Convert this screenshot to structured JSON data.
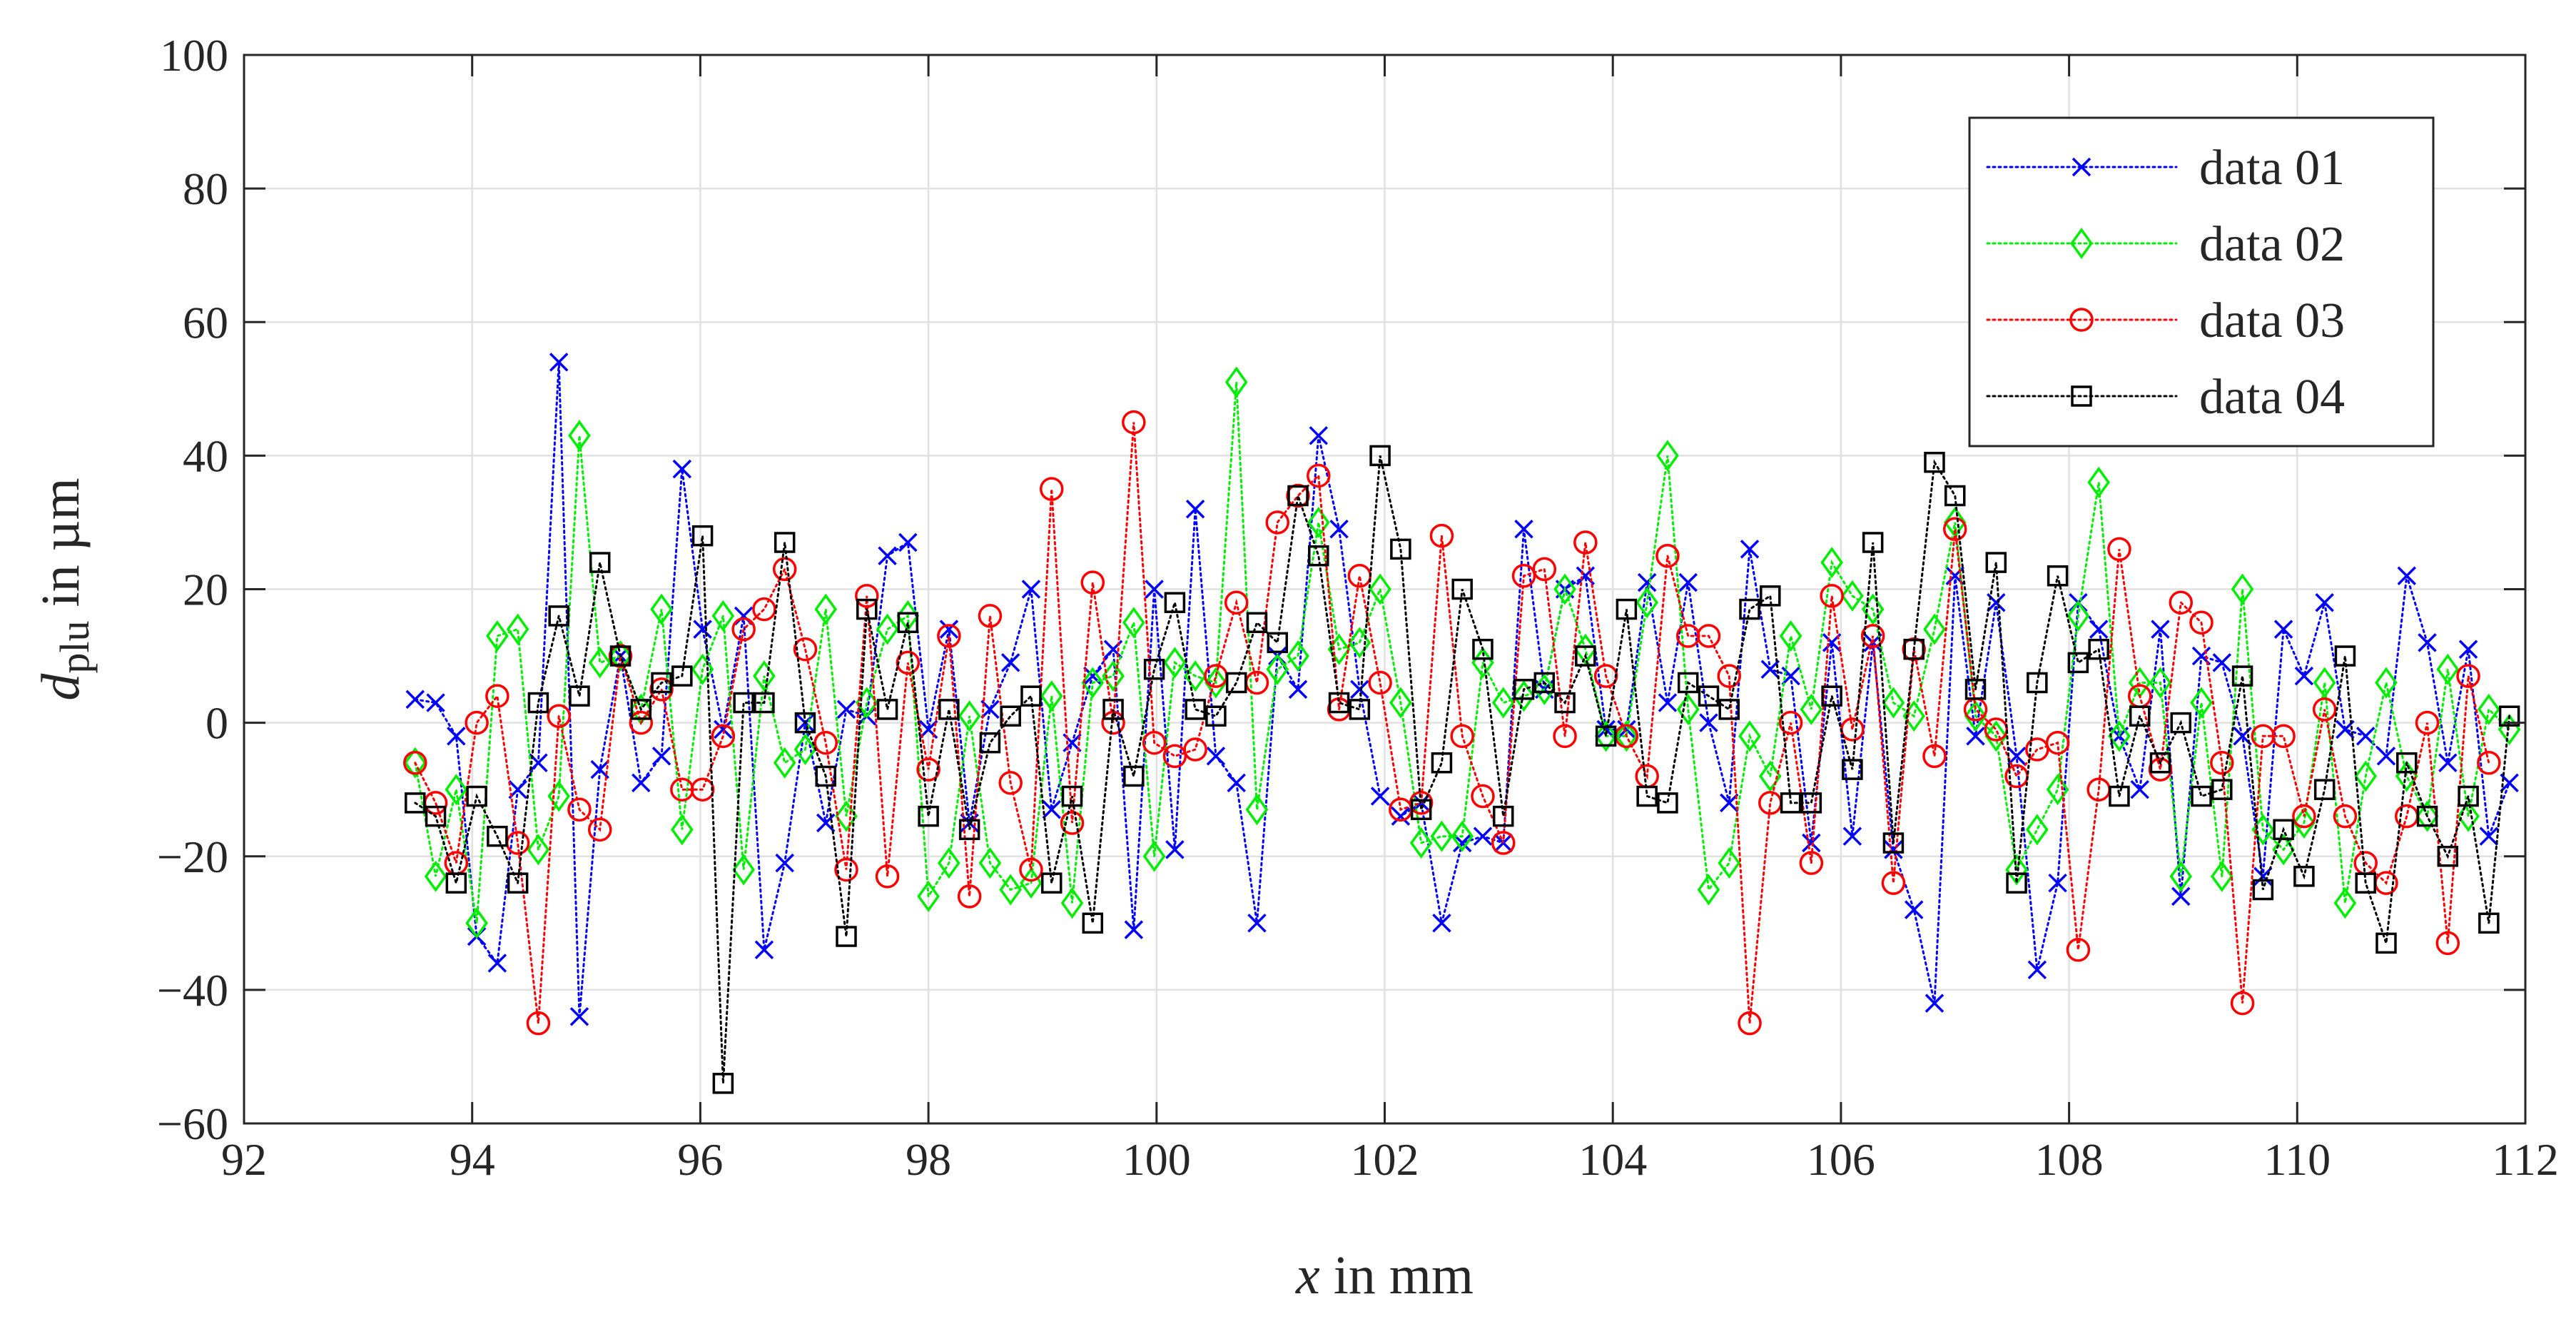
{
  "chart_data": {
    "type": "line",
    "title": "",
    "xlabel": {
      "var": "x",
      "unit": " in mm"
    },
    "ylabel": {
      "var": "d",
      "sub": "plu",
      "unit": " in µm"
    },
    "xlim": [
      92,
      112
    ],
    "ylim": [
      -60,
      100
    ],
    "xticks": [
      92,
      94,
      96,
      98,
      100,
      102,
      104,
      106,
      108,
      110,
      112
    ],
    "yticks": [
      -60,
      -40,
      -20,
      0,
      20,
      40,
      60,
      80,
      100
    ],
    "xtick_labels": [
      "92",
      "94",
      "96",
      "98",
      "100",
      "102",
      "104",
      "106",
      "108",
      "110",
      "112"
    ],
    "ytick_labels": [
      "−60",
      "−40",
      "−20",
      "0",
      "20",
      "40",
      "60",
      "80",
      "100"
    ],
    "grid": true,
    "legend_position": "top-right",
    "x_start": 93.5,
    "x_step": 0.18,
    "series": [
      {
        "name": "data 01",
        "color": "#0000ff",
        "marker": "x",
        "values": [
          3.5,
          3,
          -2,
          -32,
          -36,
          -10,
          -6,
          54,
          -44,
          -7,
          10,
          -9,
          -5,
          38,
          14,
          -1,
          16,
          -34,
          -21,
          0,
          -15,
          2,
          1,
          25,
          27,
          -1,
          14,
          -15,
          2,
          9,
          20,
          -13,
          -3,
          7,
          11,
          -31,
          20,
          -19,
          32,
          -5,
          -9,
          -30,
          10,
          5,
          43,
          29,
          5,
          -11,
          -14,
          -12,
          -30,
          -18,
          -17,
          -18,
          29,
          5,
          20,
          22,
          -1,
          -1,
          21,
          3,
          21,
          0,
          -12,
          26,
          8,
          7,
          -18,
          12,
          -17,
          12,
          -19,
          -28,
          -42,
          22,
          -2,
          18,
          -5,
          -37,
          -24,
          18,
          14,
          -2,
          -10,
          14,
          -26,
          10,
          9,
          -2,
          -23,
          14,
          7,
          18,
          -1,
          -2,
          -5,
          22,
          12,
          -6,
          11,
          -17,
          -9
        ]
      },
      {
        "name": "data 02",
        "color": "#00ee00",
        "marker": "diamond",
        "values": [
          -6,
          -23,
          -10,
          -30,
          13,
          14,
          -19,
          -11,
          43,
          9,
          10,
          2,
          17,
          -16,
          8,
          16,
          -22,
          7,
          -6,
          -4,
          17,
          -14,
          3,
          14,
          16,
          -26,
          -21,
          1,
          -21,
          -25,
          -24,
          4,
          -27,
          6,
          7,
          15,
          -20,
          9,
          7,
          6,
          51,
          -13,
          8,
          10,
          30,
          11,
          12,
          20,
          3,
          -18,
          -17,
          -17,
          9,
          3,
          4,
          5,
          20,
          11,
          -2,
          -2,
          18,
          40,
          2,
          -25,
          -21,
          -2,
          -8,
          13,
          2,
          24,
          19,
          17,
          3,
          1,
          14,
          30,
          1,
          -2,
          -22,
          -16,
          -10,
          16,
          36,
          -2,
          6,
          6,
          -23,
          3,
          -23,
          20,
          -16,
          -19,
          -15,
          6,
          -27,
          -8,
          6,
          -8,
          -14,
          8,
          -14,
          2,
          -1
        ]
      },
      {
        "name": "data 03",
        "color": "#ff0000",
        "marker": "circle",
        "values": [
          -6,
          -12,
          -21,
          0,
          4,
          -18,
          -45,
          1,
          -13,
          -16,
          10,
          0,
          5,
          -10,
          -10,
          -2,
          14,
          17,
          23,
          11,
          -3,
          -22,
          19,
          -23,
          9,
          -7,
          13,
          -26,
          16,
          -9,
          -22,
          35,
          -15,
          21,
          0,
          45,
          -3,
          -5,
          -4,
          7,
          18,
          6,
          30,
          34,
          37,
          2,
          22,
          6,
          -13,
          -12,
          28,
          -2,
          -11,
          -18,
          22,
          23,
          -2,
          27,
          7,
          -2,
          -8,
          25,
          13,
          13,
          7,
          -45,
          -12,
          0,
          -21,
          19,
          -1,
          13,
          -24,
          11,
          -5,
          29,
          2,
          -1,
          -8,
          -4,
          -3,
          -34,
          -10,
          26,
          4,
          -7,
          18,
          15,
          -6,
          -42,
          -2,
          -2,
          -14,
          2,
          -14,
          -21,
          -24,
          -14,
          0,
          -33,
          7,
          -6
        ]
      },
      {
        "name": "data 04",
        "color": "#000000",
        "marker": "square",
        "values": [
          -12,
          -14,
          -24,
          -11,
          -17,
          -24,
          3,
          16,
          4,
          24,
          10,
          2,
          6,
          7,
          28,
          -54,
          3,
          3,
          27,
          0,
          -8,
          -32,
          17,
          2,
          15,
          -14,
          2,
          -16,
          -3,
          1,
          4,
          -24,
          -11,
          -30,
          2,
          -8,
          8,
          18,
          2,
          1,
          6,
          15,
          12,
          34,
          25,
          3,
          2,
          40,
          26,
          -13,
          -6,
          20,
          11,
          -14,
          5,
          6,
          3,
          10,
          -2,
          17,
          -11,
          -12,
          6,
          4,
          2,
          17,
          19,
          -12,
          -12,
          4,
          -7,
          27,
          -18,
          11,
          39,
          34,
          5,
          24,
          -24,
          6,
          22,
          9,
          11,
          -11,
          1,
          -6,
          0,
          -11,
          -10,
          7,
          -25,
          -16,
          -23,
          -10,
          10,
          -24,
          -33,
          -6,
          -14,
          -20,
          -11,
          -30,
          1
        ]
      }
    ]
  }
}
